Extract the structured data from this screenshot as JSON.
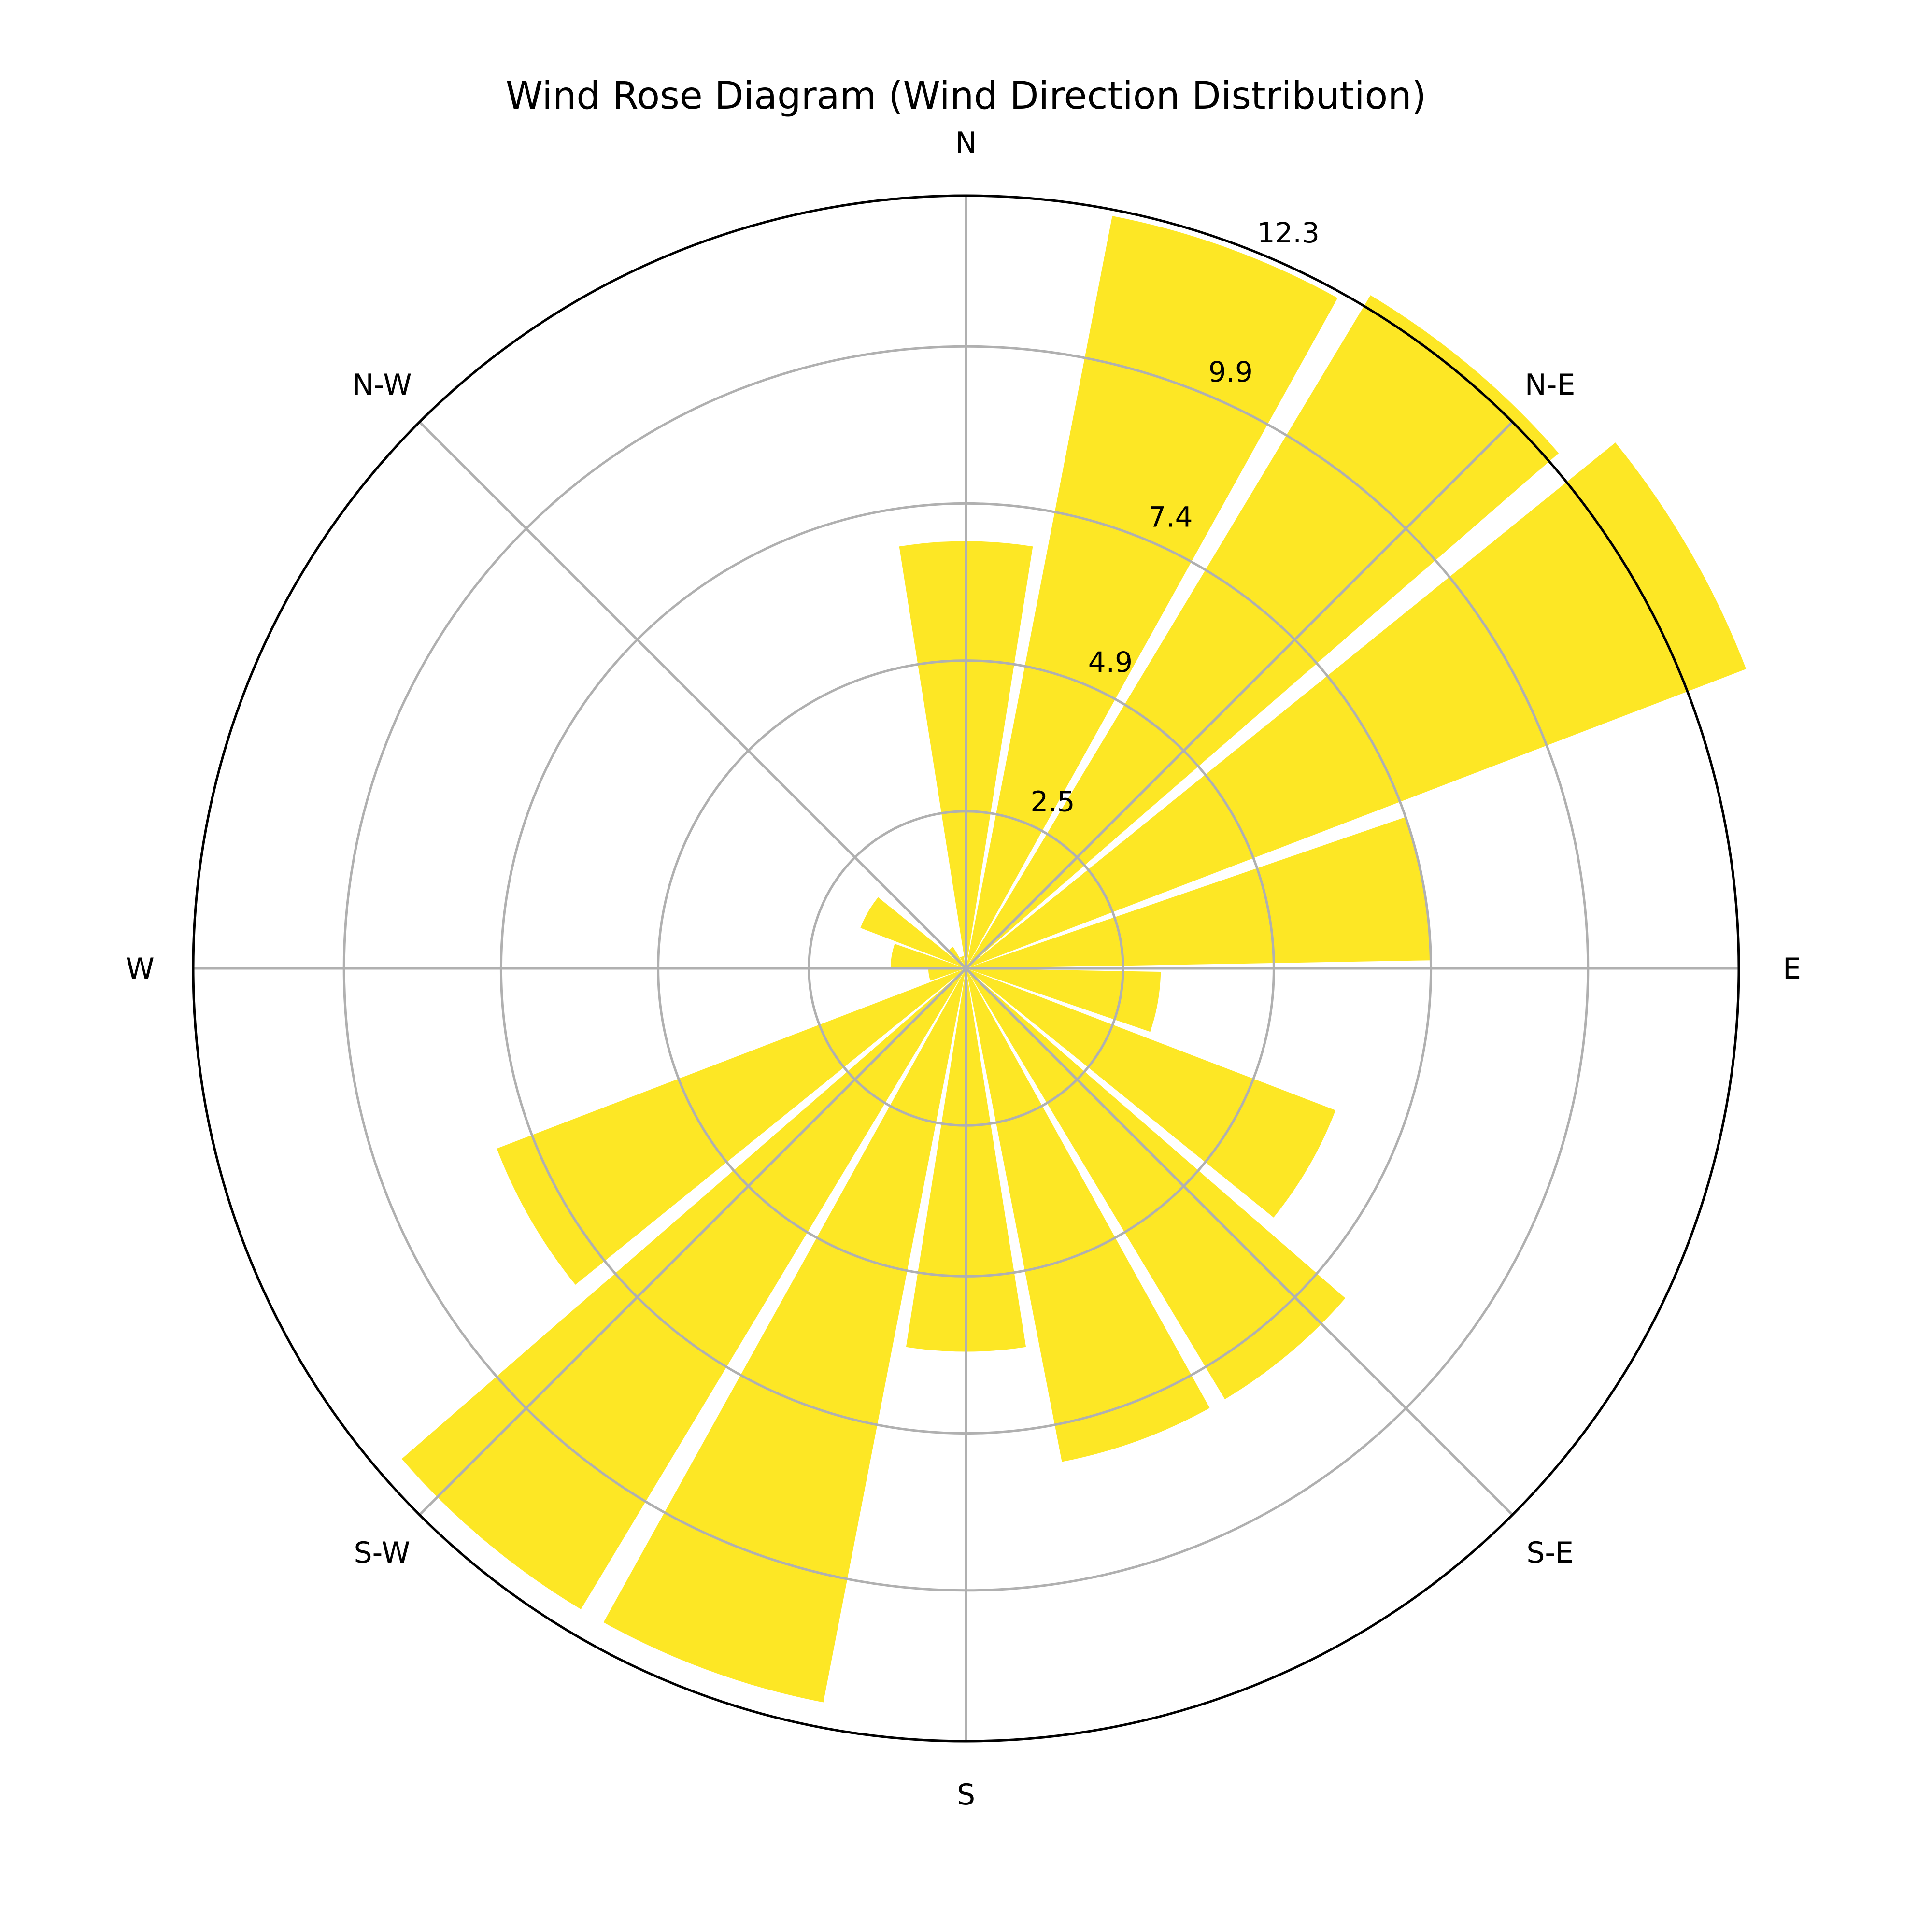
{
  "chart_data": {
    "type": "bar",
    "projection": "polar",
    "title": "Wind Rose Diagram (Wind Direction Distribution)",
    "theta_zero": "N",
    "theta_direction": "clockwise",
    "bar_color": "#fde725",
    "direction_labels": [
      {
        "name": "N",
        "angle_deg": 0
      },
      {
        "name": "N-E",
        "angle_deg": 45
      },
      {
        "name": "E",
        "angle_deg": 90
      },
      {
        "name": "S-E",
        "angle_deg": 135
      },
      {
        "name": "S",
        "angle_deg": 180
      },
      {
        "name": "S-W",
        "angle_deg": 225
      },
      {
        "name": "W",
        "angle_deg": 270
      },
      {
        "name": "N-W",
        "angle_deg": 315
      }
    ],
    "radial_ticks": [
      "2.5",
      "4.9",
      "7.4",
      "9.9",
      "12.3"
    ],
    "radial_tick_values": [
      2.5,
      4.9,
      7.4,
      9.9,
      12.3
    ],
    "rmax": 12.3,
    "bar_width_deg": 18,
    "bars": [
      {
        "angle_deg": 0,
        "value": 6.8
      },
      {
        "angle_deg": 20,
        "value": 12.2
      },
      {
        "angle_deg": 40,
        "value": 12.5
      },
      {
        "angle_deg": 60,
        "value": 13.3
      },
      {
        "angle_deg": 80,
        "value": 7.4
      },
      {
        "angle_deg": 100,
        "value": 3.1
      },
      {
        "angle_deg": 120,
        "value": 6.3
      },
      {
        "angle_deg": 140,
        "value": 8.0
      },
      {
        "angle_deg": 160,
        "value": 8.0
      },
      {
        "angle_deg": 180,
        "value": 6.1
      },
      {
        "angle_deg": 200,
        "value": 11.9
      },
      {
        "angle_deg": 220,
        "value": 11.9
      },
      {
        "angle_deg": 240,
        "value": 8.0
      },
      {
        "angle_deg": 260,
        "value": 0.6
      },
      {
        "angle_deg": 280,
        "value": 1.2
      },
      {
        "angle_deg": 300,
        "value": 1.8
      },
      {
        "angle_deg": 320,
        "value": 0.4
      },
      {
        "angle_deg": 340,
        "value": 0.2
      }
    ],
    "grid": true
  }
}
